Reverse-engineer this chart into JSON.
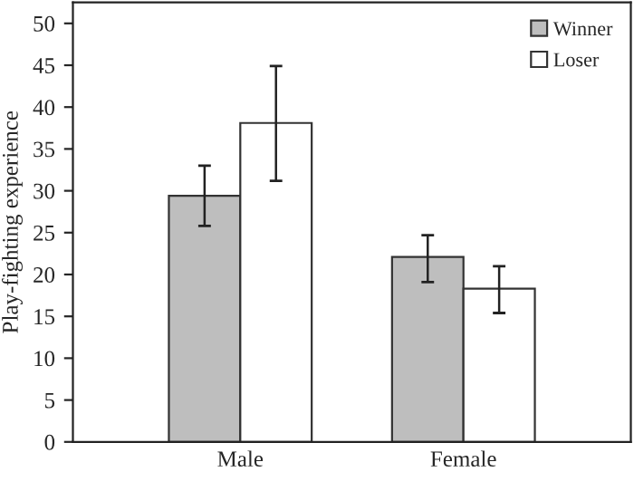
{
  "chart_data": {
    "type": "bar",
    "ylabel": "Play-fighting experience",
    "categories": [
      "Male",
      "Female"
    ],
    "series": [
      {
        "name": "Winner",
        "color": "#bebebe",
        "values": [
          29.4,
          22.1
        ],
        "errors": [
          [
            25.8,
            33.0
          ],
          [
            19.1,
            24.7
          ]
        ]
      },
      {
        "name": "Loser",
        "color": "#ffffff",
        "values": [
          38.1,
          18.3
        ],
        "errors": [
          [
            31.2,
            44.9
          ],
          [
            15.4,
            21.0
          ]
        ]
      }
    ],
    "ylim": [
      0,
      52.5
    ],
    "yticks": [
      0,
      5,
      10,
      15,
      20,
      25,
      30,
      35,
      40,
      45,
      50
    ],
    "grid": false,
    "legend": "top right"
  }
}
